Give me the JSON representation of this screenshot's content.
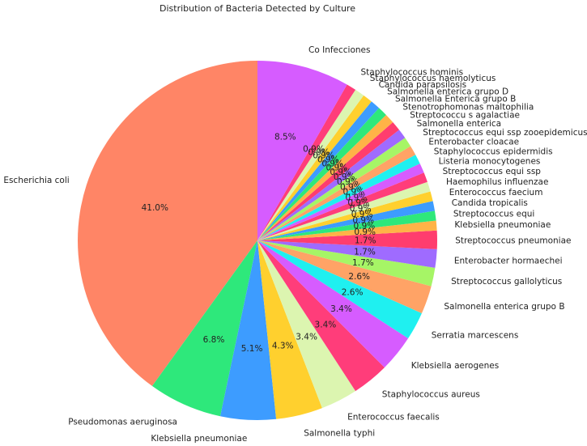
{
  "chart_data": {
    "type": "pie",
    "title": "Distribution of Bacteria Detected by Culture",
    "slices": [
      {
        "label": "Escherichia coli",
        "value": 41.0,
        "pct_label": "41.0%",
        "color": "#ff8566"
      },
      {
        "label": "Pseudomonas aeruginosa",
        "value": 6.8,
        "pct_label": "6.8%",
        "color": "#2ee87b"
      },
      {
        "label": "Klebsiella pneumoniae",
        "value": 5.1,
        "pct_label": "5.1%",
        "color": "#3d9cff"
      },
      {
        "label": "Salmonella typhi",
        "value": 4.3,
        "pct_label": "4.3%",
        "color": "#ffd02e"
      },
      {
        "label": "Enterococcus faecalis",
        "value": 3.4,
        "pct_label": "3.4%",
        "color": "#dcf5b0"
      },
      {
        "label": "Staphylococcus aureus",
        "value": 3.4,
        "pct_label": "3.4%",
        "color": "#ff3d7a"
      },
      {
        "label": "Klebsiella aerogenes",
        "value": 3.4,
        "pct_label": "3.4%",
        "color": "#d65cff"
      },
      {
        "label": "Serratia marcescens",
        "value": 2.6,
        "pct_label": "2.6%",
        "color": "#1ff0f0"
      },
      {
        "label": "Salmonella enterica grupo B",
        "value": 2.6,
        "pct_label": "2.6%",
        "color": "#ffa366"
      },
      {
        "label": "Streptococcus gallolyticus",
        "value": 1.7,
        "pct_label": "1.7%",
        "color": "#a6f566"
      },
      {
        "label": "Enterobacter hormaechei",
        "value": 1.7,
        "pct_label": "1.7%",
        "color": "#9f6bff"
      },
      {
        "label": "Streptococcus pneumoniae",
        "value": 1.7,
        "pct_label": "1.7%",
        "color": "#ff3d6e"
      },
      {
        "label": "Klebsiella pneumoniae",
        "value": 0.9,
        "pct_label": "0.9%",
        "color": "#ffb347"
      },
      {
        "label": "Streptococcus equi",
        "value": 0.9,
        "pct_label": "0.9%",
        "color": "#2ee87b"
      },
      {
        "label": "Candida tropicalis",
        "value": 0.9,
        "pct_label": "0.9%",
        "color": "#3d9cff"
      },
      {
        "label": "Enterococcus faecium",
        "value": 0.9,
        "pct_label": "0.9%",
        "color": "#ffd02e"
      },
      {
        "label": "Haemophilus influenzae",
        "value": 0.9,
        "pct_label": "0.9%",
        "color": "#dcf5b0"
      },
      {
        "label": "Streptococcus equi ssp",
        "value": 0.9,
        "pct_label": "0.9%",
        "color": "#ff3d7a"
      },
      {
        "label": "Listeria monocytogenes",
        "value": 0.9,
        "pct_label": "0.9%",
        "color": "#d65cff"
      },
      {
        "label": "Staphylococcus epidermidis",
        "value": 0.9,
        "pct_label": "0.9%",
        "color": "#1ff0f0"
      },
      {
        "label": "Enterobacter cloacae",
        "value": 0.9,
        "pct_label": "0.9%",
        "color": "#ffa366"
      },
      {
        "label": "Streptococcus equi ssp zooepidemicus",
        "value": 0.9,
        "pct_label": "0.9%",
        "color": "#a6f566"
      },
      {
        "label": "Salmonella enterica",
        "value": 0.9,
        "pct_label": "0.9%",
        "color": "#9f6bff"
      },
      {
        "label": "Streptococcu s agalactiae",
        "value": 0.9,
        "pct_label": "0.9%",
        "color": "#ff3d6e"
      },
      {
        "label": "Stenotrophomonas maltophilia",
        "value": 0.9,
        "pct_label": "0.9%",
        "color": "#ffb347"
      },
      {
        "label": "Salmonella Enterica grupo B",
        "value": 0.9,
        "pct_label": "0.9%",
        "color": "#2ee87b"
      },
      {
        "label": "Salmonella enterica grupo D",
        "value": 0.9,
        "pct_label": "0.9%",
        "color": "#3d9cff"
      },
      {
        "label": "Candida parapsilosis",
        "value": 0.9,
        "pct_label": "0.9%",
        "color": "#ffd02e"
      },
      {
        "label": "Staphylococcus haemolyticus",
        "value": 0.9,
        "pct_label": "0.9%",
        "color": "#dcf5b0"
      },
      {
        "label": "Staphylococcus hominis",
        "value": 0.9,
        "pct_label": "0.9%",
        "color": "#ff3d7a"
      },
      {
        "label": "Co Infecciones",
        "value": 8.5,
        "pct_label": "8.5%",
        "color": "#d65cff"
      }
    ]
  }
}
